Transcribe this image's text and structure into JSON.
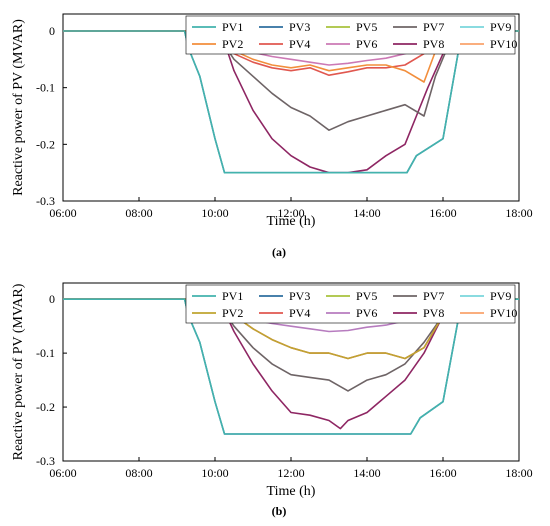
{
  "chart_data": [
    {
      "type": "line",
      "panel_label": "(a)",
      "xlabel": "Time (h)",
      "ylabel": "Reactive power of PV (MVAR)",
      "x_ticks": [
        "06:00",
        "08:00",
        "10:00",
        "12:00",
        "14:00",
        "16:00",
        "18:00"
      ],
      "y_ticks": [
        "0",
        "-0.1",
        "-0.2",
        "-0.3"
      ],
      "xlim": [
        6,
        18
      ],
      "ylim": [
        -0.3,
        0.03
      ],
      "grid": false,
      "legend_position": "top-right",
      "series": [
        {
          "name": "PV1",
          "color": "#43b3ad",
          "x": [
            6,
            9.2,
            9.3,
            9.6,
            10.0,
            10.25,
            15.05,
            15.3,
            16.0,
            16.5,
            18
          ],
          "y": [
            0,
            0,
            -0.03,
            -0.08,
            -0.19,
            -0.25,
            -0.25,
            -0.22,
            -0.19,
            0,
            0
          ]
        },
        {
          "name": "PV2",
          "color": "#f28e3c",
          "x": [
            6,
            10.0,
            10.5,
            11.0,
            11.5,
            12.0,
            12.5,
            13.0,
            13.5,
            14.0,
            14.5,
            15.0,
            15.5,
            16.0,
            18
          ],
          "y": [
            0,
            0,
            -0.035,
            -0.05,
            -0.06,
            -0.065,
            -0.06,
            -0.07,
            -0.065,
            -0.06,
            -0.06,
            -0.07,
            -0.09,
            0,
            0
          ]
        },
        {
          "name": "PV3",
          "color": "#2e6f9f",
          "x": [
            6,
            9.2,
            9.3,
            9.6,
            10.0,
            10.25,
            15.05,
            15.3,
            16.0,
            16.5,
            18
          ],
          "y": [
            0,
            0,
            -0.03,
            -0.08,
            -0.19,
            -0.25,
            -0.25,
            -0.22,
            -0.19,
            0,
            0
          ]
        },
        {
          "name": "PV4",
          "color": "#e0574f",
          "x": [
            6,
            10.0,
            10.5,
            11.0,
            11.5,
            12.0,
            12.5,
            13.0,
            13.5,
            14.0,
            14.5,
            15.0,
            15.5,
            16.0,
            16.3,
            18
          ],
          "y": [
            0,
            0,
            -0.04,
            -0.055,
            -0.065,
            -0.07,
            -0.065,
            -0.078,
            -0.072,
            -0.065,
            -0.065,
            -0.06,
            -0.04,
            -0.01,
            0,
            0
          ]
        },
        {
          "name": "PV5",
          "color": "#a8c23d",
          "x": [
            6,
            10.0,
            10.5,
            11.0,
            11.5,
            12.0,
            12.5,
            13.0,
            13.5,
            14.0,
            14.5,
            15.0,
            15.5,
            16.0,
            16.3,
            18
          ],
          "y": [
            0,
            0,
            -0.012,
            -0.02,
            -0.025,
            -0.028,
            -0.03,
            -0.035,
            -0.032,
            -0.03,
            -0.027,
            -0.022,
            -0.015,
            -0.005,
            0,
            0
          ]
        },
        {
          "name": "PV6",
          "color": "#cc79b5",
          "x": [
            6,
            10.0,
            10.5,
            11.0,
            11.5,
            12.0,
            12.5,
            13.0,
            13.5,
            14.0,
            14.5,
            15.0,
            15.5,
            16.0,
            16.3,
            18
          ],
          "y": [
            0,
            0,
            -0.025,
            -0.038,
            -0.045,
            -0.05,
            -0.055,
            -0.06,
            -0.057,
            -0.052,
            -0.048,
            -0.04,
            -0.028,
            -0.01,
            0,
            0
          ]
        },
        {
          "name": "PV7",
          "color": "#6e6466",
          "x": [
            6,
            10.0,
            10.5,
            11.0,
            11.5,
            12.0,
            12.5,
            13.0,
            13.5,
            14.0,
            14.5,
            15.0,
            15.5,
            15.8,
            16.3,
            18
          ],
          "y": [
            0,
            0,
            -0.05,
            -0.08,
            -0.11,
            -0.135,
            -0.15,
            -0.175,
            -0.16,
            -0.15,
            -0.14,
            -0.13,
            -0.15,
            -0.08,
            0,
            0
          ]
        },
        {
          "name": "PV8",
          "color": "#8e2663",
          "x": [
            6,
            10.0,
            10.3,
            10.5,
            11.0,
            11.5,
            12.0,
            12.5,
            13.0,
            13.5,
            14.0,
            14.5,
            15.0,
            15.3,
            15.6,
            16.0,
            16.3,
            18
          ],
          "y": [
            0,
            0,
            -0.03,
            -0.07,
            -0.14,
            -0.19,
            -0.22,
            -0.24,
            -0.25,
            -0.25,
            -0.245,
            -0.22,
            -0.2,
            -0.15,
            -0.1,
            -0.04,
            0,
            0
          ]
        },
        {
          "name": "PV9",
          "color": "#7ad6dc",
          "x": [
            6,
            18
          ],
          "y": [
            0,
            0
          ]
        },
        {
          "name": "PV10",
          "color": "#f9a26b",
          "x": [
            6,
            18
          ],
          "y": [
            0,
            0
          ]
        }
      ]
    },
    {
      "type": "line",
      "panel_label": "(b)",
      "xlabel": "Time (h)",
      "ylabel": "Reactive power of PV (MVAR)",
      "x_ticks": [
        "06:00",
        "08:00",
        "10:00",
        "12:00",
        "14:00",
        "16:00",
        "18:00"
      ],
      "y_ticks": [
        "0",
        "-0.1",
        "-0.2",
        "-0.3"
      ],
      "xlim": [
        6,
        18
      ],
      "ylim": [
        -0.3,
        0.03
      ],
      "grid": false,
      "legend_position": "top-right",
      "series": [
        {
          "name": "PV1",
          "color": "#43b3ad",
          "x": [
            6,
            9.2,
            9.3,
            9.6,
            10.0,
            10.25,
            15.15,
            15.4,
            16.0,
            16.5,
            18
          ],
          "y": [
            0,
            0,
            -0.03,
            -0.08,
            -0.19,
            -0.25,
            -0.25,
            -0.22,
            -0.19,
            0,
            0
          ]
        },
        {
          "name": "PV2",
          "color": "#bfa431",
          "x": [
            6,
            10.0,
            10.5,
            11.0,
            11.5,
            12.0,
            12.5,
            13.0,
            13.5,
            14.0,
            14.5,
            15.0,
            15.5,
            16.0,
            16.3,
            18
          ],
          "y": [
            0,
            0,
            -0.03,
            -0.055,
            -0.075,
            -0.09,
            -0.1,
            -0.1,
            -0.11,
            -0.1,
            -0.1,
            -0.11,
            -0.09,
            -0.03,
            0,
            0
          ]
        },
        {
          "name": "PV3",
          "color": "#2e6f9f",
          "x": [
            6,
            9.2,
            9.3,
            9.6,
            10.0,
            10.25,
            15.15,
            15.4,
            16.0,
            16.5,
            18
          ],
          "y": [
            0,
            0,
            -0.03,
            -0.08,
            -0.19,
            -0.25,
            -0.25,
            -0.22,
            -0.19,
            0,
            0
          ]
        },
        {
          "name": "PV4",
          "color": "#e0574f",
          "x": [
            6,
            10.0,
            10.5,
            11.0,
            11.5,
            12.0,
            12.5,
            13.0,
            13.5,
            14.0,
            14.5,
            15.0,
            15.5,
            16.0,
            16.3,
            18
          ],
          "y": [
            0,
            0,
            -0.03,
            -0.055,
            -0.075,
            -0.09,
            -0.1,
            -0.1,
            -0.11,
            -0.1,
            -0.1,
            -0.11,
            -0.09,
            -0.03,
            0,
            0
          ]
        },
        {
          "name": "PV5",
          "color": "#a8c23d",
          "x": [
            6,
            10.0,
            10.5,
            11.0,
            11.5,
            12.0,
            12.5,
            13.0,
            13.5,
            14.0,
            14.5,
            15.0,
            15.5,
            16.0,
            16.3,
            18
          ],
          "y": [
            0,
            0,
            -0.012,
            -0.02,
            -0.025,
            -0.028,
            -0.03,
            -0.035,
            -0.032,
            -0.03,
            -0.027,
            -0.022,
            -0.015,
            -0.005,
            0,
            0
          ]
        },
        {
          "name": "PV6",
          "color": "#b77cbf",
          "x": [
            6,
            10.0,
            10.5,
            11.0,
            11.5,
            12.0,
            12.5,
            13.0,
            13.5,
            14.0,
            14.5,
            15.0,
            15.5,
            16.0,
            16.3,
            18
          ],
          "y": [
            0,
            0,
            -0.025,
            -0.038,
            -0.045,
            -0.05,
            -0.055,
            -0.06,
            -0.058,
            -0.052,
            -0.048,
            -0.04,
            -0.028,
            -0.01,
            0,
            0
          ]
        },
        {
          "name": "PV7",
          "color": "#6e6466",
          "x": [
            6,
            10.0,
            10.5,
            11.0,
            11.5,
            12.0,
            12.5,
            13.0,
            13.5,
            14.0,
            14.5,
            15.0,
            15.5,
            16.0,
            16.3,
            18
          ],
          "y": [
            0,
            0,
            -0.05,
            -0.09,
            -0.12,
            -0.14,
            -0.145,
            -0.15,
            -0.17,
            -0.15,
            -0.14,
            -0.12,
            -0.08,
            -0.03,
            0,
            0
          ]
        },
        {
          "name": "PV8",
          "color": "#8e2663",
          "x": [
            6,
            10.0,
            10.3,
            10.5,
            11.0,
            11.5,
            12.0,
            12.5,
            13.0,
            13.3,
            13.5,
            14.0,
            14.5,
            15.0,
            15.5,
            16.0,
            16.3,
            18
          ],
          "y": [
            0,
            0,
            -0.03,
            -0.06,
            -0.12,
            -0.17,
            -0.21,
            -0.215,
            -0.225,
            -0.24,
            -0.225,
            -0.21,
            -0.18,
            -0.15,
            -0.1,
            -0.03,
            0,
            0
          ]
        },
        {
          "name": "PV9",
          "color": "#7ad6dc",
          "x": [
            6,
            18
          ],
          "y": [
            0,
            0
          ]
        },
        {
          "name": "PV10",
          "color": "#f9a26b",
          "x": [
            6,
            18
          ],
          "y": [
            0,
            0
          ]
        }
      ]
    }
  ]
}
